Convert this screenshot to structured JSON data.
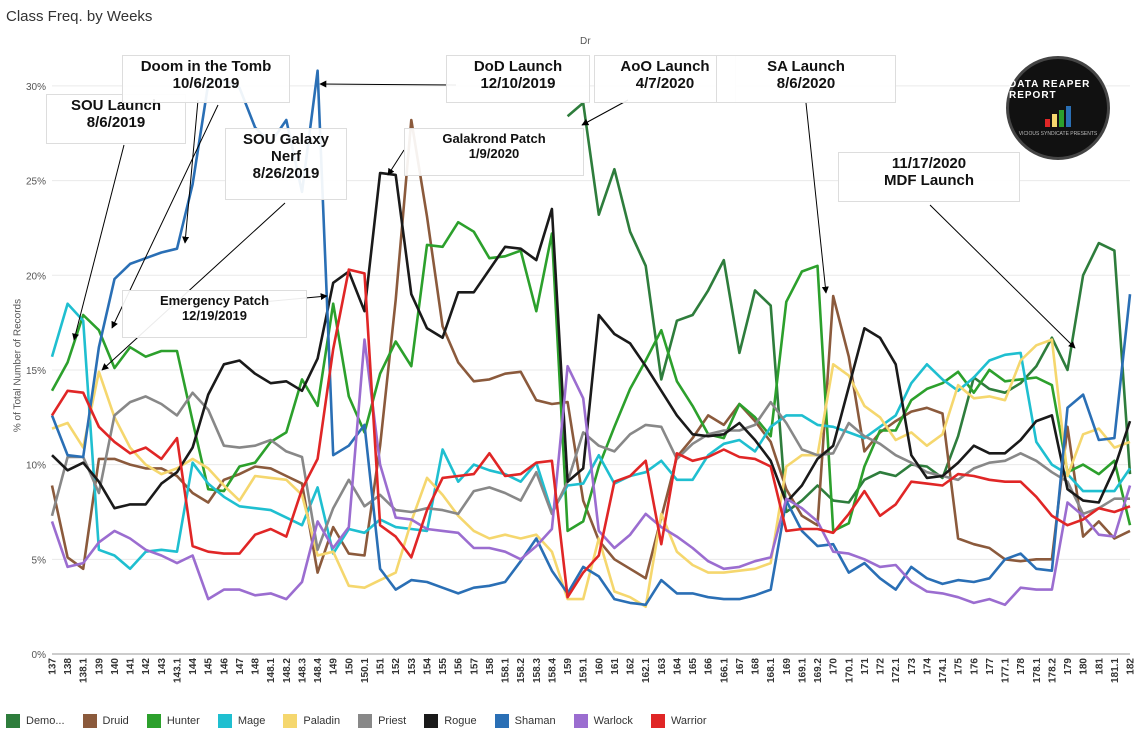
{
  "title": "Class Freq. by Weeks",
  "subheader": "Dr",
  "y_axis_label": "% of Total Number of Records",
  "logo": {
    "text": "DATA REAPER REPORT",
    "tagline": "VICIOUS SYNDICATE PRESENTS"
  },
  "annotations": [
    {
      "id": "sou",
      "lines": [
        "SOU Launch",
        "8/6/2019"
      ]
    },
    {
      "id": "doom",
      "lines": [
        "Doom in the Tomb",
        "10/6/2019"
      ]
    },
    {
      "id": "nerf",
      "lines": [
        "SOU Galaxy",
        "Nerf",
        "8/26/2019"
      ]
    },
    {
      "id": "emerg",
      "lines": [
        "Emergency Patch",
        "12/19/2019"
      ]
    },
    {
      "id": "dod",
      "lines": [
        "DoD Launch",
        "12/10/2019"
      ]
    },
    {
      "id": "gala",
      "lines": [
        "Galakrond Patch",
        "1/9/2020"
      ]
    },
    {
      "id": "aoo",
      "lines": [
        "AoO Launch",
        "4/7/2020"
      ]
    },
    {
      "id": "sa",
      "lines": [
        "SA Launch",
        "8/6/2020"
      ]
    },
    {
      "id": "mdf",
      "lines": [
        "11/17/2020",
        "MDF Launch"
      ]
    }
  ],
  "chart_data": {
    "type": "line",
    "ylabel": "% of Total Number of Records",
    "ylim": [
      0,
      32
    ],
    "y_ticks": [
      "0%",
      "5%",
      "10%",
      "15%",
      "20%",
      "25%",
      "30%"
    ],
    "x_tick_labels": [
      "137",
      "138",
      "138.1",
      "139",
      "140",
      "141",
      "142",
      "143",
      "143.1",
      "144",
      "145",
      "146",
      "147",
      "148",
      "148.1",
      "148.2",
      "148.3",
      "148.4",
      "149",
      "150",
      "150.1",
      "151",
      "152",
      "153",
      "154",
      "155",
      "156",
      "157",
      "158",
      "158.1",
      "158.2",
      "158.3",
      "158.4",
      "159",
      "159.1",
      "160",
      "161",
      "162",
      "162.1",
      "163",
      "164",
      "165",
      "166",
      "166.1",
      "167",
      "168",
      "168.1",
      "169",
      "169.1",
      "169.2",
      "170",
      "170.1",
      "171",
      "172",
      "172.1",
      "173",
      "174",
      "174.1",
      "175",
      "176",
      "177",
      "177.1",
      "178",
      "178.1",
      "178.2",
      "179",
      "180",
      "181",
      "181.1",
      "182"
    ],
    "series": [
      {
        "name": "Demo...",
        "color": "#2e7d3c",
        "values": [
          null,
          null,
          null,
          null,
          null,
          null,
          null,
          null,
          null,
          null,
          null,
          null,
          null,
          null,
          null,
          null,
          null,
          null,
          null,
          null,
          null,
          null,
          null,
          null,
          null,
          null,
          null,
          null,
          null,
          null,
          null,
          null,
          null,
          28.4,
          29.1,
          23.2,
          25.6,
          22.3,
          20.5,
          14.5,
          17.6,
          17.9,
          19.2,
          20.8,
          15.9,
          19.2,
          18.4,
          7.5,
          8.1,
          8.9,
          8.1,
          8.0,
          9.2,
          9.6,
          9.4,
          10.0,
          9.9,
          9.3,
          11.5,
          14.6,
          14.0,
          13.8,
          14.3,
          15.2,
          16.7,
          15.0,
          20.0,
          21.7,
          21.3,
          9.5
        ]
      },
      {
        "name": "Druid",
        "color": "#8b5a3c",
        "values": [
          8.9,
          5.1,
          4.5,
          10.3,
          10.3,
          10.0,
          9.8,
          9.8,
          9.4,
          8.5,
          8.0,
          9.2,
          9.5,
          9.9,
          9.8,
          9.4,
          9.0,
          4.3,
          6.7,
          5.3,
          5.2,
          11.0,
          18.7,
          28.2,
          23.1,
          17.3,
          15.4,
          14.4,
          14.5,
          14.8,
          14.9,
          13.4,
          13.2,
          13.3,
          8.1,
          6.0,
          5.0,
          4.5,
          4.0,
          7.2,
          10.4,
          11.4,
          12.6,
          12.1,
          13.2,
          12.3,
          11.2,
          8.7,
          7.3,
          6.8,
          18.9,
          15.7,
          10.7,
          11.7,
          12.3,
          12.8,
          13.0,
          12.7,
          6.1,
          5.8,
          5.6,
          5.0,
          4.9,
          5.0,
          5.0,
          12.0,
          6.2,
          7.0,
          6.1,
          6.5
        ]
      },
      {
        "name": "Hunter",
        "color": "#2ca02c",
        "values": [
          13.9,
          15.4,
          17.9,
          17.1,
          15.1,
          16.2,
          15.7,
          16.0,
          16.0,
          12.3,
          8.7,
          8.6,
          9.9,
          10.1,
          11.2,
          11.7,
          14.5,
          13.1,
          18.5,
          13.6,
          11.7,
          14.8,
          16.5,
          15.2,
          21.6,
          21.5,
          22.8,
          22.3,
          20.9,
          21.0,
          21.3,
          18.1,
          22.2,
          6.5,
          7.0,
          9.9,
          12.0,
          14.0,
          15.5,
          17.1,
          14.4,
          13.1,
          11.6,
          11.4,
          13.2,
          12.5,
          11.5,
          18.6,
          20.2,
          20.5,
          6.5,
          6.9,
          9.9,
          11.8,
          11.8,
          13.4,
          14.0,
          14.3,
          14.9,
          13.8,
          15.0,
          14.4,
          14.5,
          14.6,
          14.2,
          9.6,
          10.0,
          9.5,
          10.2,
          6.8
        ]
      },
      {
        "name": "Mage",
        "color": "#1fbfd0",
        "values": [
          15.7,
          18.5,
          17.6,
          5.5,
          5.2,
          4.5,
          5.4,
          5.5,
          5.4,
          10.1,
          9.0,
          8.3,
          7.8,
          7.7,
          7.6,
          7.2,
          6.8,
          8.8,
          5.3,
          6.6,
          6.4,
          7.1,
          6.7,
          6.6,
          6.5,
          10.8,
          9.1,
          10.0,
          9.7,
          9.5,
          9.1,
          10.1,
          7.5,
          8.9,
          9.0,
          10.5,
          9.0,
          9.4,
          9.6,
          10.2,
          9.2,
          9.2,
          10.5,
          11.1,
          11.3,
          10.7,
          12.0,
          12.6,
          12.6,
          12.1,
          12.0,
          11.7,
          11.4,
          12.0,
          12.6,
          14.3,
          15.3,
          14.5,
          13.9,
          14.6,
          15.5,
          15.8,
          15.9,
          11.2,
          10.0,
          9.5,
          8.6,
          8.6,
          8.6,
          9.8
        ]
      },
      {
        "name": "Paladin",
        "color": "#f5d76e",
        "values": [
          11.9,
          12.2,
          10.9,
          14.9,
          12.5,
          10.9,
          10.0,
          9.5,
          9.8,
          10.3,
          9.8,
          8.9,
          8.1,
          9.4,
          9.3,
          9.2,
          8.4,
          5.2,
          5.4,
          3.6,
          3.5,
          3.9,
          4.3,
          7.0,
          9.3,
          8.4,
          7.3,
          6.5,
          6.1,
          6.3,
          6.1,
          6.3,
          5.4,
          2.9,
          2.9,
          6.1,
          3.3,
          3.0,
          2.5,
          7.4,
          5.4,
          4.7,
          4.3,
          4.3,
          4.4,
          4.5,
          4.8,
          9.9,
          10.5,
          10.5,
          15.3,
          14.7,
          13.1,
          12.5,
          11.3,
          11.7,
          11.0,
          11.6,
          14.2,
          13.5,
          13.6,
          13.4,
          15.5,
          16.3,
          16.6,
          9.4,
          11.6,
          11.9,
          10.9,
          11.2
        ]
      },
      {
        "name": "Priest",
        "color": "#888888",
        "values": [
          7.3,
          10.4,
          10.4,
          8.5,
          12.6,
          13.3,
          13.6,
          13.2,
          12.6,
          13.8,
          12.9,
          11.0,
          10.9,
          11.0,
          11.3,
          10.7,
          10.4,
          5.5,
          7.7,
          9.2,
          7.8,
          8.4,
          7.6,
          7.5,
          7.7,
          7.6,
          7.4,
          8.6,
          8.8,
          8.5,
          8.1,
          9.6,
          7.4,
          9.1,
          11.7,
          11.0,
          10.7,
          11.6,
          12.1,
          12.0,
          10.3,
          11.1,
          11.6,
          11.8,
          11.8,
          12.1,
          13.3,
          12.2,
          10.8,
          10.5,
          10.6,
          12.2,
          11.5,
          11.1,
          10.5,
          10.1,
          9.6,
          9.4,
          9.2,
          9.8,
          10.1,
          10.2,
          10.6,
          10.2,
          9.6,
          9.1,
          7.4,
          7.7,
          8.2,
          8.2
        ]
      },
      {
        "name": "Rogue",
        "color": "#1a1a1a",
        "values": [
          10.5,
          9.7,
          10.1,
          9.1,
          7.7,
          7.9,
          7.9,
          9.0,
          9.6,
          10.9,
          13.7,
          15.3,
          15.5,
          14.8,
          14.3,
          14.4,
          13.9,
          15.6,
          19.6,
          20.2,
          18.1,
          25.4,
          25.3,
          19.0,
          17.2,
          16.7,
          19.1,
          19.1,
          20.3,
          21.5,
          21.4,
          20.8,
          23.5,
          9.1,
          9.8,
          17.9,
          16.9,
          16.4,
          15.2,
          13.9,
          12.6,
          11.6,
          11.5,
          11.6,
          12.2,
          11.3,
          10.2,
          8.0,
          8.9,
          10.3,
          11.0,
          14.1,
          17.2,
          16.7,
          15.3,
          10.5,
          9.3,
          9.4,
          10.1,
          11.0,
          10.6,
          10.6,
          11.3,
          12.3,
          12.6,
          8.7,
          8.1,
          8.0,
          9.8,
          12.3
        ]
      },
      {
        "name": "Shaman",
        "color": "#2a6fb5",
        "values": [
          12.6,
          10.5,
          10.4,
          16.2,
          19.8,
          20.6,
          20.9,
          21.2,
          21.4,
          24.8,
          30.1,
          30.3,
          29.9,
          27.8,
          27.0,
          28.2,
          24.4,
          30.8,
          10.5,
          11.0,
          12.1,
          4.5,
          3.4,
          3.9,
          3.8,
          3.5,
          3.2,
          3.5,
          3.6,
          3.8,
          4.9,
          6.1,
          4.4,
          3.2,
          4.6,
          4.1,
          2.9,
          2.7,
          2.6,
          3.9,
          3.2,
          3.2,
          3.0,
          2.9,
          2.9,
          3.1,
          3.4,
          8.1,
          6.5,
          5.7,
          5.8,
          4.3,
          4.8,
          4.0,
          3.4,
          4.6,
          4.0,
          3.7,
          3.9,
          3.8,
          4.0,
          5.0,
          5.3,
          4.5,
          4.4,
          13.0,
          13.7,
          11.3,
          11.4,
          19.0
        ]
      },
      {
        "name": "Warlock",
        "color": "#9b6dd0",
        "values": [
          7.0,
          4.6,
          4.8,
          5.9,
          6.5,
          6.1,
          5.5,
          5.2,
          4.8,
          5.2,
          2.9,
          3.4,
          3.4,
          3.1,
          3.2,
          2.9,
          3.8,
          7.0,
          5.6,
          6.7,
          16.6,
          10.0,
          7.2,
          7.1,
          6.6,
          6.5,
          6.4,
          5.6,
          5.6,
          5.4,
          5.0,
          5.7,
          6.6,
          15.2,
          13.5,
          6.5,
          5.6,
          6.3,
          7.4,
          6.7,
          6.2,
          5.6,
          4.9,
          4.5,
          4.6,
          4.9,
          5.1,
          8.2,
          7.7,
          7.0,
          5.4,
          5.3,
          5.0,
          4.6,
          4.7,
          3.8,
          3.3,
          3.2,
          3.0,
          2.7,
          2.9,
          2.6,
          3.5,
          3.4,
          3.4,
          8.0,
          7.3,
          6.3,
          6.2,
          8.9
        ]
      },
      {
        "name": "Warrior",
        "color": "#e02626",
        "values": [
          12.6,
          13.9,
          13.8,
          12.0,
          11.2,
          10.6,
          10.9,
          10.3,
          11.4,
          5.7,
          5.4,
          5.3,
          5.3,
          6.3,
          6.6,
          6.2,
          8.7,
          10.3,
          16.1,
          20.3,
          20.1,
          6.8,
          6.2,
          5.1,
          7.6,
          9.3,
          9.4,
          9.5,
          10.6,
          9.4,
          9.5,
          10.1,
          10.2,
          3.0,
          4.3,
          5.2,
          9.1,
          9.4,
          10.2,
          5.8,
          10.6,
          10.2,
          10.4,
          10.8,
          10.4,
          10.3,
          9.9,
          6.5,
          6.6,
          6.6,
          6.4,
          7.4,
          8.6,
          7.3,
          7.9,
          9.1,
          9.0,
          8.9,
          9.5,
          9.4,
          9.2,
          9.1,
          9.1,
          8.3,
          7.3,
          6.8,
          7.1,
          7.7,
          7.5,
          7.8
        ]
      }
    ]
  }
}
